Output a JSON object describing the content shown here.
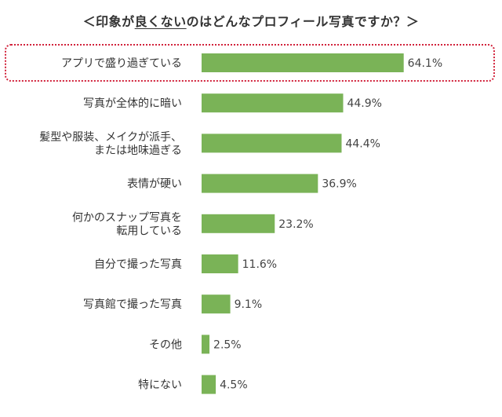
{
  "chart_data": {
    "type": "bar",
    "orientation": "horizontal",
    "title_prefix": "＜印象が",
    "title_emphasis": "良くない",
    "title_suffix": "のはどんなプロフィール写真ですか？＞",
    "categories": [
      [
        "アプリで盛り過ぎている"
      ],
      [
        "写真が全体的に暗い"
      ],
      [
        "髪型や服装、メイクが派手、",
        "または地味過ぎる"
      ],
      [
        "表情が硬い"
      ],
      [
        "何かのスナップ写真を",
        "転用している"
      ],
      [
        "自分で撮った写真"
      ],
      [
        "写真館で撮った写真"
      ],
      [
        "その他"
      ],
      [
        "特にない"
      ]
    ],
    "values": [
      64.1,
      44.9,
      44.4,
      36.9,
      23.2,
      11.6,
      9.1,
      2.5,
      4.5
    ],
    "value_labels": [
      "64.1%",
      "44.9%",
      "44.4%",
      "36.9%",
      "23.2%",
      "11.6%",
      "9.1%",
      "2.5%",
      "4.5%"
    ],
    "unit": "%",
    "highlighted_index": 0,
    "xlim": [
      0,
      100
    ],
    "grid": false,
    "legend": "none",
    "colors": {
      "bar": "#7ab357",
      "highlight_border": "#d2233c",
      "text": "#333333"
    }
  }
}
